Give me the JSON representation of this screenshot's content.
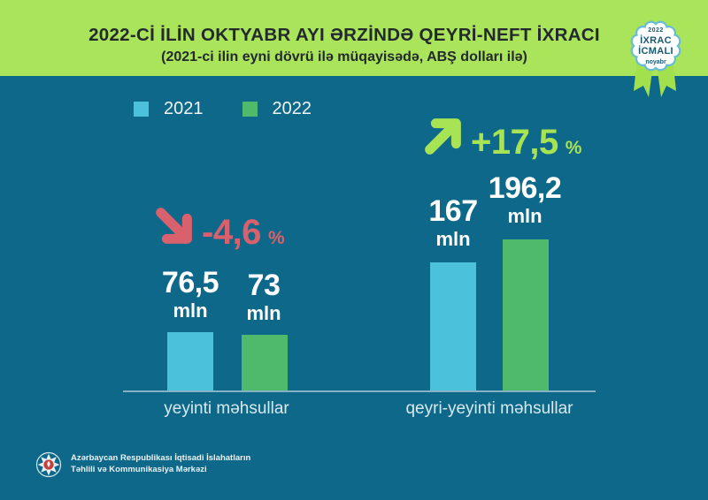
{
  "header": {
    "title": "2022-Cİ İLİN OKTYABR AYI ƏRZİNDƏ QEYRİ-NEFT İXRACI",
    "subtitle": "(2021-ci ilin eyni dövrü ilə müqayisədə, ABŞ dolları ilə)"
  },
  "badge": {
    "year": "2022",
    "line1": "İXRAC",
    "line2": "İCMALI",
    "month": "noyabr"
  },
  "legend": [
    {
      "label": "2021",
      "color": "#4cc1dc"
    },
    {
      "label": "2022",
      "color": "#4fba6b"
    }
  ],
  "groups": [
    {
      "category": "yeyinti məhsullar",
      "change": "-4,6",
      "percent_sign": "%",
      "direction": "down",
      "values": [
        {
          "number": "76,5",
          "unit": "mln"
        },
        {
          "number": "73",
          "unit": "mln"
        }
      ]
    },
    {
      "category": "qeyri-yeyinti məhsullar",
      "change": "+17,5",
      "percent_sign": "%",
      "direction": "up",
      "values": [
        {
          "number": "167",
          "unit": "mln"
        },
        {
          "number": "196,2",
          "unit": "mln"
        }
      ]
    }
  ],
  "chart_data": {
    "type": "bar",
    "title": "2022-ci ilin oktyabr ayı ərzində qeyri-neft ixracı",
    "subtitle": "(2021-ci ilin eyni dövrü ilə müqayisədə, ABŞ dolları ilə)",
    "categories": [
      "yeyinti məhsullar",
      "qeyri-yeyinti məhsullar"
    ],
    "series": [
      {
        "name": "2021",
        "values": [
          76.5,
          167
        ],
        "color": "#4cc1dc"
      },
      {
        "name": "2022",
        "values": [
          73,
          196.2
        ],
        "color": "#4fba6b"
      }
    ],
    "unit": "mln",
    "changes": [
      "-4,6%",
      "+17,5%"
    ],
    "ylim": [
      0,
      200
    ],
    "grid": false,
    "legend_position": "top-left"
  },
  "footer": {
    "org_line1": "Azərbaycan Respublikası İqtisadi İslahatların",
    "org_line2": "Təhlili və Kommunikasiya Mərkəzi"
  },
  "colors": {
    "background": "#0e6889",
    "header_band": "#a9e45a",
    "title_text": "#24292e",
    "bar_2021": "#4cc1dc",
    "bar_2022": "#4fba6b",
    "decrease": "#d9606d",
    "increase": "#a8e356",
    "axis_line": "#85b3c4",
    "value_text": "#ffffff"
  }
}
